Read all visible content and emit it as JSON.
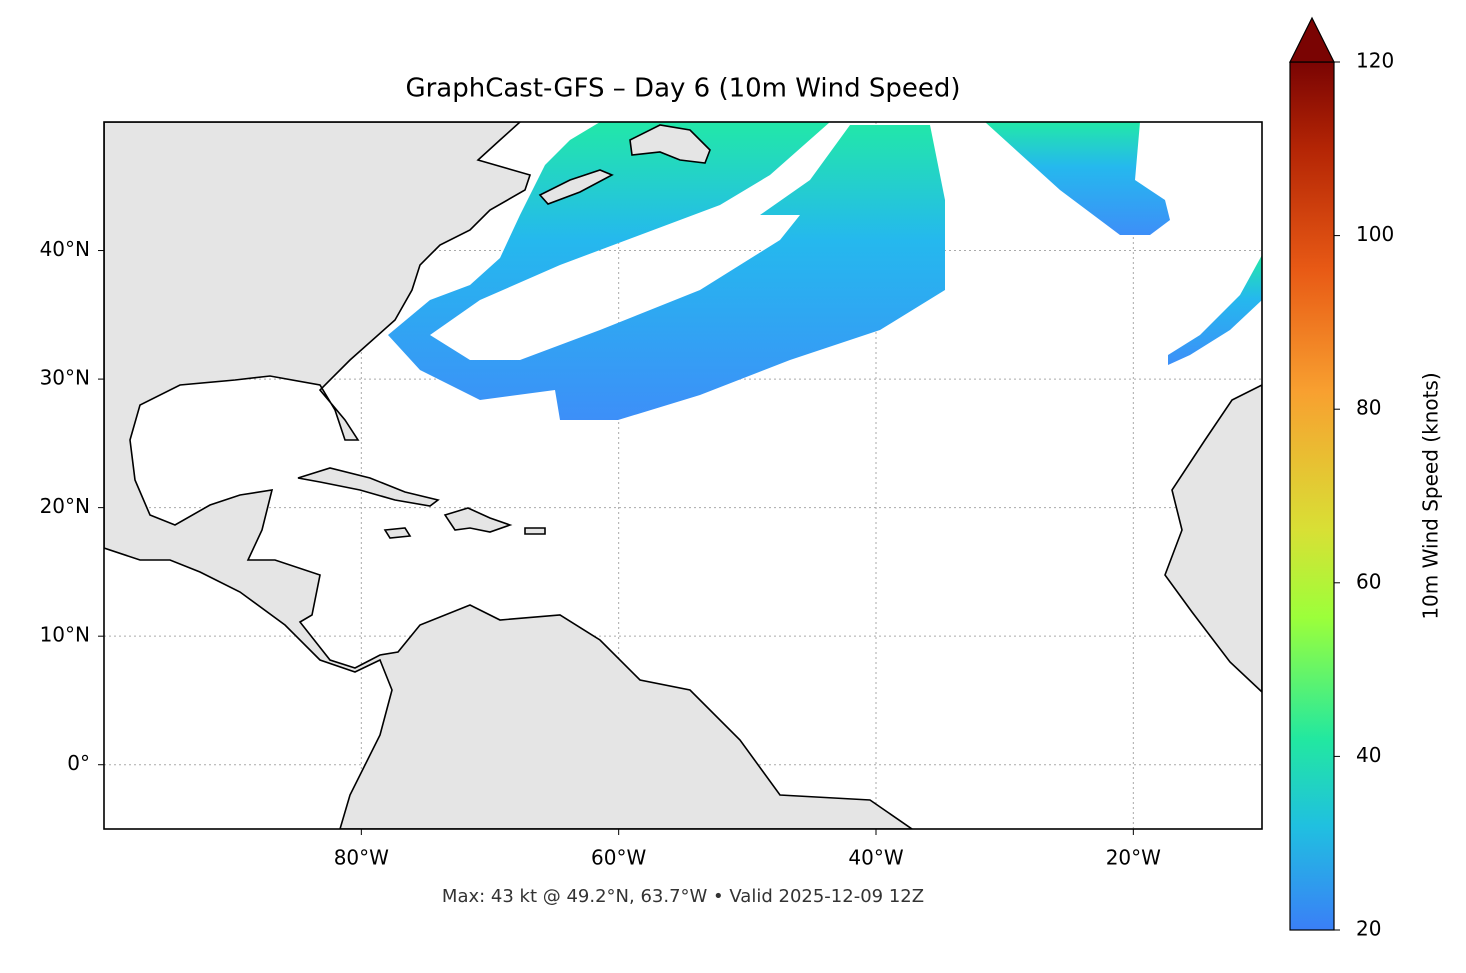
{
  "chart_data": {
    "type": "map",
    "title": "GraphCast-GFS – Day 6 (10m Wind Speed)",
    "footnote": "Max: 43 kt @ 49.2°N, 63.7°W • Valid 2025-12-09 12Z",
    "xlim": [
      -100,
      -10
    ],
    "ylim": [
      -5,
      50
    ],
    "xticks": [
      {
        "value": -80,
        "label": "80°W"
      },
      {
        "value": -60,
        "label": "60°W"
      },
      {
        "value": -40,
        "label": "40°W"
      },
      {
        "value": -20,
        "label": "20°W"
      }
    ],
    "yticks": [
      {
        "value": 0,
        "label": "0°"
      },
      {
        "value": 10,
        "label": "10°N"
      },
      {
        "value": 20,
        "label": "20°N"
      },
      {
        "value": 30,
        "label": "30°N"
      },
      {
        "value": 40,
        "label": "40°N"
      }
    ],
    "grid": true,
    "colorbar": {
      "label": "10m Wind Speed (knots)",
      "lim": [
        20,
        120
      ],
      "ticks": [
        20,
        40,
        60,
        80,
        100,
        120
      ]
    }
  }
}
